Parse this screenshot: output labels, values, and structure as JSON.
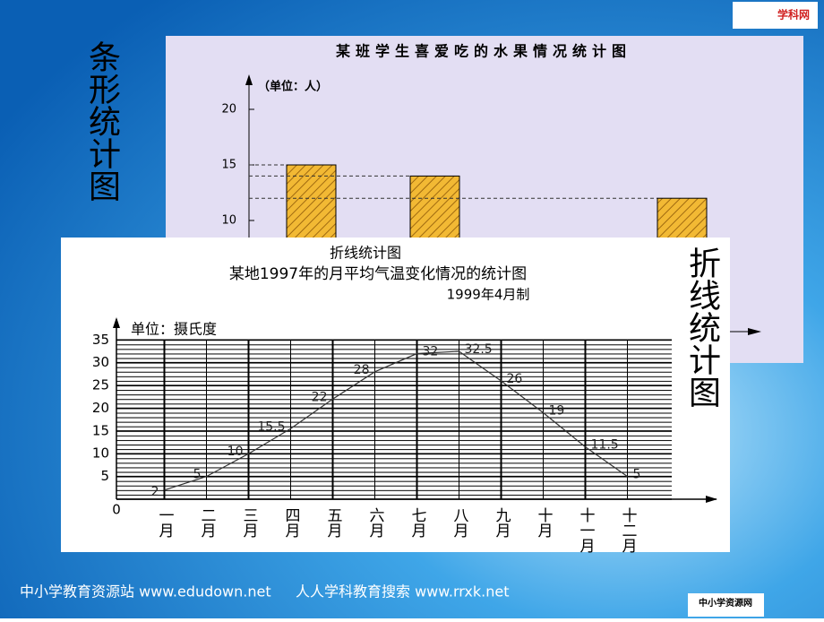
{
  "slide": {
    "left_label": "条形统计图",
    "right_label": "折线统计图",
    "footer_left": "中小学教育资源站 www.edudown.net",
    "footer_right": "人人学科教育搜索 www.rrxk.net",
    "logo_top": "学科网",
    "logo_bottom": "中小学资源网"
  },
  "chart_data": [
    {
      "type": "bar",
      "title": "某班学生喜爱吃的水果情况统计图",
      "y_label": "（单位：人）",
      "categories": [
        null,
        null,
        null,
        null
      ],
      "values": [
        15,
        14,
        null,
        12
      ],
      "color": "#f2b934",
      "ylim": [
        0,
        22.5
      ],
      "yticks": [
        10,
        15,
        20
      ]
    },
    {
      "type": "line",
      "title": "折线统计图",
      "subtitle": "某地1997年的月平均气温变化情况的统计图",
      "note": "1999年4月制",
      "y_label": "单位：摄氏度",
      "categories": [
        "一月",
        "二月",
        "三月",
        "四月",
        "五月",
        "六月",
        "七月",
        "八月",
        "九月",
        "十月",
        "十一月",
        "十二月"
      ],
      "values": [
        2,
        5,
        10,
        15.5,
        22,
        28,
        32,
        32.5,
        26,
        19,
        11.5,
        5
      ],
      "color": "#333333",
      "ylim": [
        0,
        38.8
      ],
      "yticks": [
        0,
        5,
        10,
        15,
        20,
        25,
        30,
        35
      ],
      "grid": true
    }
  ]
}
